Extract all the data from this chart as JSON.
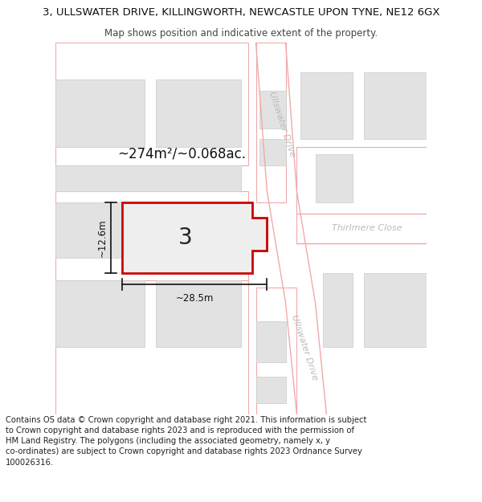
{
  "title_line1": "3, ULLSWATER DRIVE, KILLINGWORTH, NEWCASTLE UPON TYNE, NE12 6GX",
  "title_line2": "Map shows position and indicative extent of the property.",
  "footer_text": "Contains OS data © Crown copyright and database right 2021. This information is subject to Crown copyright and database rights 2023 and is reproduced with the permission of HM Land Registry. The polygons (including the associated geometry, namely x, y co-ordinates) are subject to Crown copyright and database rights 2023 Ordnance Survey 100026316.",
  "area_label": "~274m²/~0.068ac.",
  "width_label": "~28.5m",
  "height_label": "~12.6m",
  "plot_number": "3",
  "road_label_upper": "Ullswater Drive",
  "road_label_lower": "Ullswater Drive",
  "road_label_right": "Thirlmere Close",
  "bg_color": "#ffffff",
  "map_bg_color": "#f9f9f9",
  "building_fill": "#e2e2e2",
  "building_edge": "#d0d0d0",
  "road_fill": "#ffffff",
  "road_edge": "#f0aaaa",
  "plot_fill": "#eeeeee",
  "plot_edge": "#cc0000",
  "dim_color": "#111111",
  "road_label_color": "#bbbbbb",
  "text_color": "#222222",
  "title_fs": 9.5,
  "subtitle_fs": 8.5,
  "footer_fs": 7.2,
  "area_fs": 12,
  "dim_fs": 8.5,
  "plot_num_fs": 20,
  "road_label_fs": 8
}
